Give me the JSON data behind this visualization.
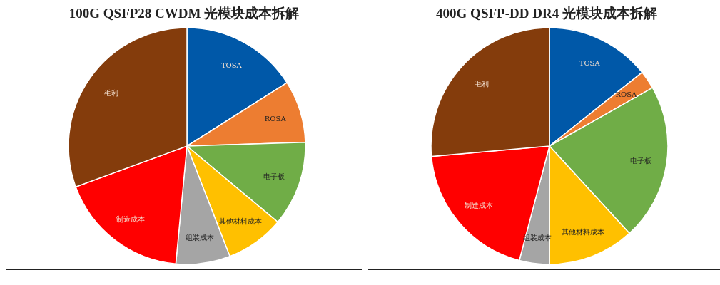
{
  "chart_data": [
    {
      "type": "pie",
      "title": "100G QSFP28 CWDM 光模块成本拆解",
      "categories": [
        "TOSA",
        "ROSA",
        "电子板",
        "其他材料成本",
        "组装成本",
        "制造成本",
        "毛利"
      ],
      "values": [
        16.0,
        8.5,
        11.6,
        8.0,
        7.4,
        17.9,
        30.6
      ],
      "colors": [
        "#0058a8",
        "#ed7d31",
        "#70ad47",
        "#ffc000",
        "#a5a5a5",
        "#ff0000",
        "#843c0c"
      ],
      "legend": false
    },
    {
      "type": "pie",
      "title": "400G QSFP-DD DR4 光模块成本拆解",
      "categories": [
        "TOSA",
        "ROSA",
        "电子板",
        "其他材料成本",
        "组装成本",
        "制造成本",
        "毛利"
      ],
      "values": [
        14.3,
        2.5,
        21.4,
        11.8,
        4.1,
        19.5,
        26.4
      ],
      "colors": [
        "#0058a8",
        "#ed7d31",
        "#70ad47",
        "#ffc000",
        "#a5a5a5",
        "#ff0000",
        "#843c0c"
      ],
      "legend": false
    }
  ]
}
